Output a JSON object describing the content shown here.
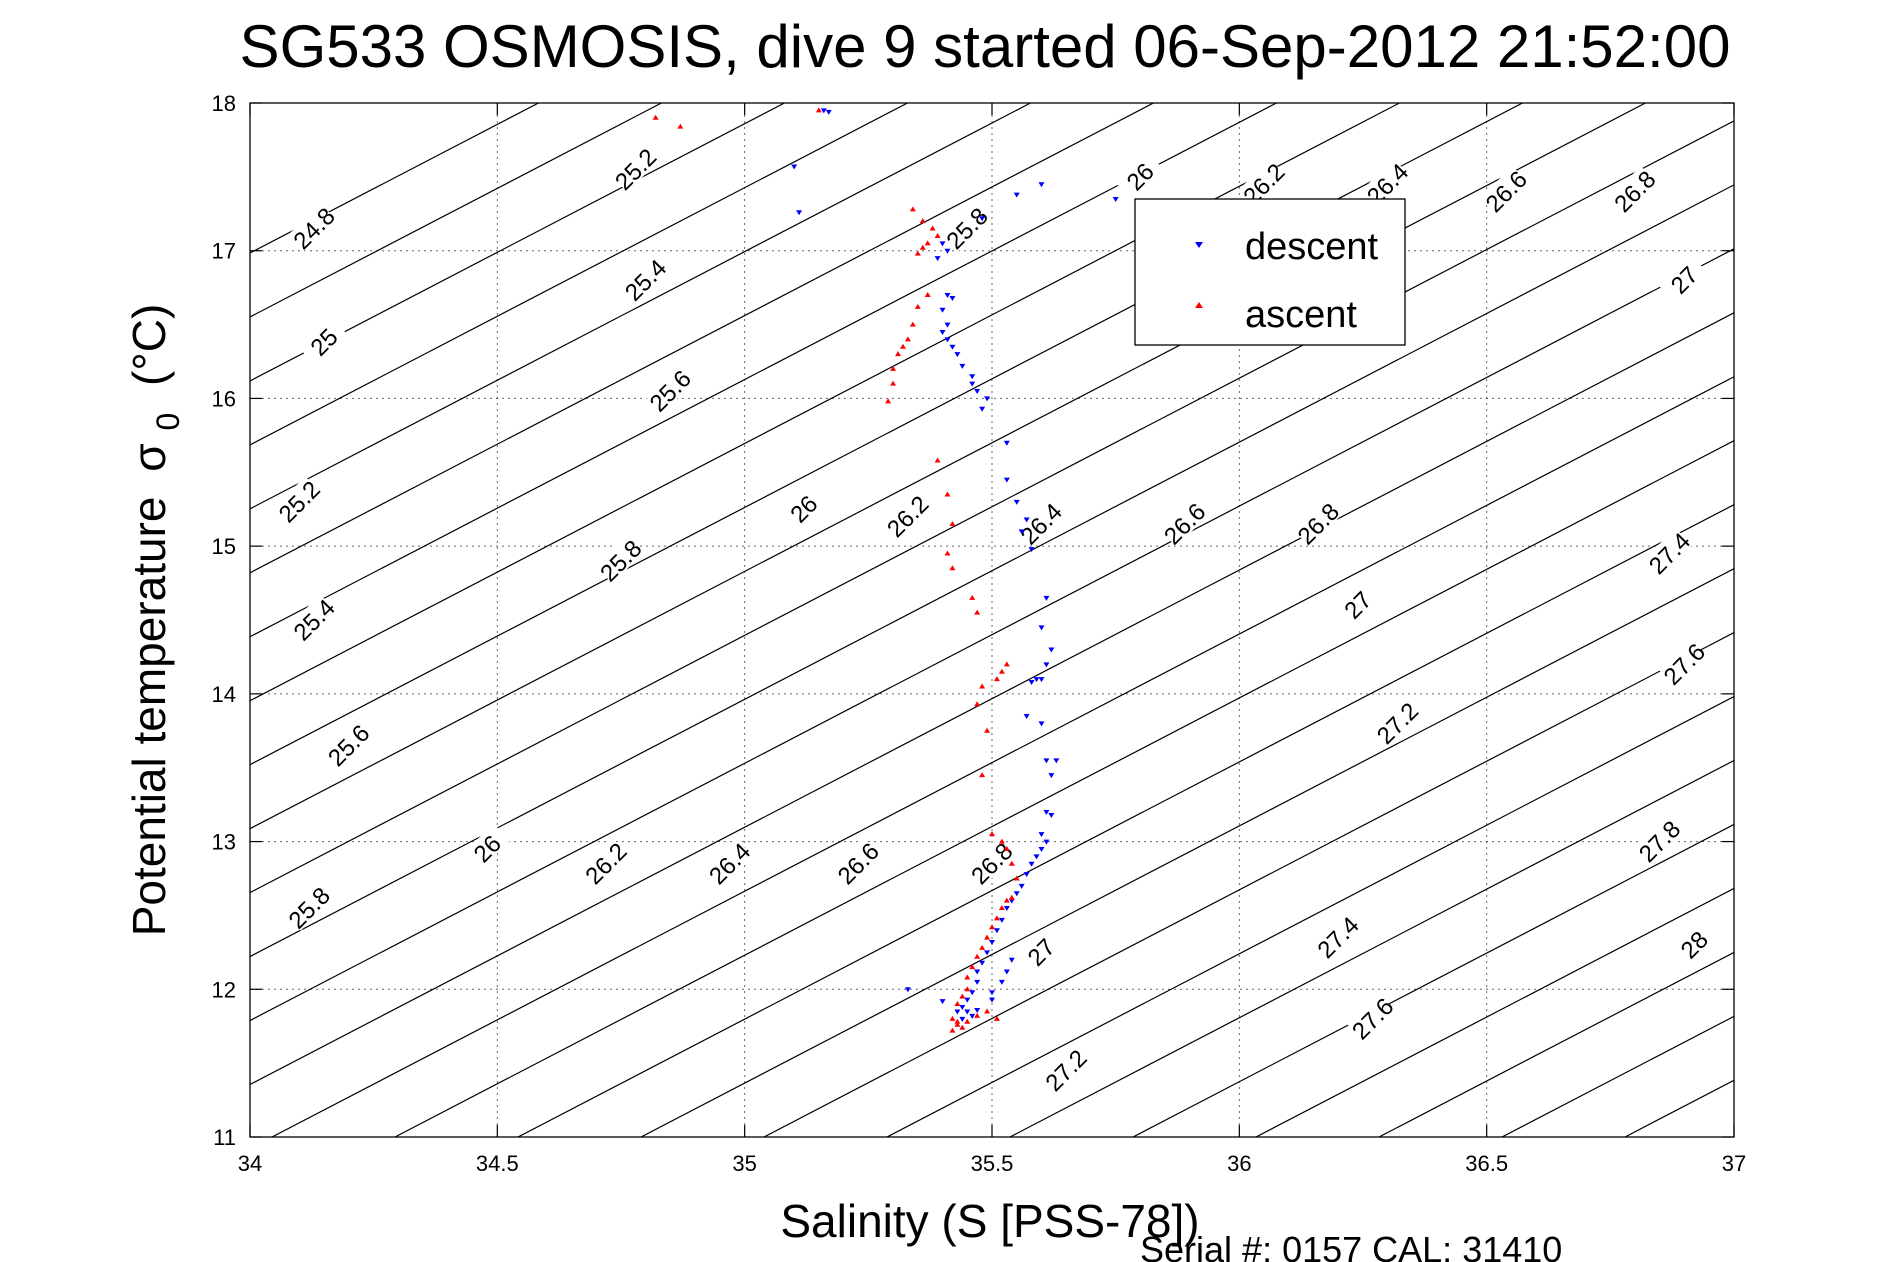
{
  "chart_data": {
    "type": "scatter",
    "title": "SG533 OSMOSIS, dive 9 started 06-Sep-2012 21:52:00",
    "xlabel": "Salinity (S [PSS-78])",
    "ylabel_main": "Potential temperature",
    "ylabel_symbol": "σ",
    "ylabel_subscript": "0",
    "ylabel_unit": "(°C)",
    "xlim": [
      34,
      37
    ],
    "ylim": [
      11,
      18
    ],
    "xticks": [
      "34",
      "34.5",
      "35",
      "35.5",
      "36",
      "36.5",
      "37"
    ],
    "yticks": [
      "11",
      "12",
      "13",
      "14",
      "15",
      "16",
      "17",
      "18"
    ],
    "grid": true,
    "legend_position": "top-right",
    "footer": "Serial #: 0157  CAL: 31410",
    "contours": [
      {
        "label": "24.8",
        "labels": [
          [
            34.13,
            17.15
          ]
        ]
      },
      {
        "label": "25",
        "labels": [
          [
            34.15,
            16.38
          ]
        ]
      },
      {
        "label": "25.2",
        "labels": [
          [
            34.1,
            15.3
          ],
          [
            34.78,
            17.55
          ]
        ]
      },
      {
        "label": "25.4",
        "labels": [
          [
            34.13,
            14.5
          ],
          [
            34.8,
            16.8
          ]
        ]
      },
      {
        "label": "25.6",
        "labels": [
          [
            34.2,
            13.65
          ],
          [
            34.85,
            16.05
          ]
        ]
      },
      {
        "label": "25.8",
        "labels": [
          [
            34.12,
            12.55
          ],
          [
            34.75,
            14.9
          ],
          [
            35.45,
            17.15
          ]
        ]
      },
      {
        "label": "26",
        "labels": [
          [
            34.48,
            12.95
          ],
          [
            35.12,
            15.25
          ],
          [
            35.8,
            17.5
          ]
        ]
      },
      {
        "label": "26.2",
        "labels": [
          [
            34.72,
            12.85
          ],
          [
            35.33,
            15.2
          ],
          [
            36.05,
            17.45
          ]
        ]
      },
      {
        "label": "26.4",
        "labels": [
          [
            34.97,
            12.85
          ],
          [
            35.6,
            15.15
          ],
          [
            36.3,
            17.45
          ]
        ]
      },
      {
        "label": "26.6",
        "labels": [
          [
            35.23,
            12.85
          ],
          [
            35.89,
            15.15
          ],
          [
            36.54,
            17.4
          ]
        ]
      },
      {
        "label": "26.8",
        "labels": [
          [
            35.5,
            12.85
          ],
          [
            36.16,
            15.15
          ],
          [
            36.8,
            17.4
          ]
        ]
      },
      {
        "label": "27",
        "labels": [
          [
            35.6,
            12.25
          ],
          [
            36.24,
            14.6
          ],
          [
            36.9,
            16.8
          ]
        ]
      },
      {
        "label": "27.2",
        "labels": [
          [
            35.65,
            11.45
          ],
          [
            36.32,
            13.8
          ]
        ]
      },
      {
        "label": "27.4",
        "labels": [
          [
            36.2,
            12.35
          ],
          [
            36.87,
            14.95
          ]
        ]
      },
      {
        "label": "27.6",
        "labels": [
          [
            36.27,
            11.8
          ],
          [
            36.9,
            14.2
          ]
        ]
      },
      {
        "label": "27.8",
        "labels": [
          [
            36.85,
            13.0
          ]
        ]
      },
      {
        "label": "28",
        "labels": [
          [
            36.92,
            12.3
          ]
        ]
      }
    ],
    "series": [
      {
        "name": "descent",
        "color": "#0000ff",
        "marker": "triangle-down",
        "points": [
          [
            35.16,
            17.95
          ],
          [
            35.17,
            17.94
          ],
          [
            35.1,
            17.57
          ],
          [
            35.11,
            17.26
          ],
          [
            35.6,
            17.45
          ],
          [
            35.55,
            17.38
          ],
          [
            35.75,
            17.35
          ],
          [
            35.48,
            17.22
          ],
          [
            35.4,
            17.05
          ],
          [
            35.41,
            17.0
          ],
          [
            35.39,
            16.95
          ],
          [
            35.41,
            16.7
          ],
          [
            35.42,
            16.68
          ],
          [
            35.4,
            16.6
          ],
          [
            35.41,
            16.5
          ],
          [
            35.4,
            16.45
          ],
          [
            35.41,
            16.4
          ],
          [
            35.42,
            16.35
          ],
          [
            35.43,
            16.3
          ],
          [
            35.44,
            16.22
          ],
          [
            35.46,
            16.1
          ],
          [
            35.47,
            16.05
          ],
          [
            35.49,
            16.0
          ],
          [
            35.46,
            16.15
          ],
          [
            35.48,
            15.93
          ],
          [
            35.53,
            15.7
          ],
          [
            35.53,
            15.45
          ],
          [
            35.55,
            15.3
          ],
          [
            35.57,
            15.18
          ],
          [
            35.56,
            15.1
          ],
          [
            35.58,
            14.98
          ],
          [
            35.61,
            14.65
          ],
          [
            35.6,
            14.45
          ],
          [
            35.62,
            14.3
          ],
          [
            35.61,
            14.2
          ],
          [
            35.6,
            14.1
          ],
          [
            35.59,
            14.1
          ],
          [
            35.58,
            14.08
          ],
          [
            35.57,
            13.85
          ],
          [
            35.6,
            13.8
          ],
          [
            35.61,
            13.55
          ],
          [
            35.63,
            13.55
          ],
          [
            35.62,
            13.45
          ],
          [
            35.61,
            13.2
          ],
          [
            35.62,
            13.18
          ],
          [
            35.6,
            13.05
          ],
          [
            35.61,
            13.0
          ],
          [
            35.6,
            12.95
          ],
          [
            35.59,
            12.9
          ],
          [
            35.58,
            12.85
          ],
          [
            35.57,
            12.78
          ],
          [
            35.56,
            12.7
          ],
          [
            35.55,
            12.65
          ],
          [
            35.54,
            12.6
          ],
          [
            35.53,
            12.55
          ],
          [
            35.52,
            12.47
          ],
          [
            35.51,
            12.4
          ],
          [
            35.5,
            12.32
          ],
          [
            35.49,
            12.25
          ],
          [
            35.48,
            12.18
          ],
          [
            35.47,
            12.12
          ],
          [
            35.47,
            12.05
          ],
          [
            35.46,
            11.98
          ],
          [
            35.45,
            11.93
          ],
          [
            35.44,
            11.88
          ],
          [
            35.43,
            11.85
          ],
          [
            35.44,
            11.8
          ],
          [
            35.46,
            11.82
          ],
          [
            35.47,
            11.86
          ],
          [
            35.5,
            11.93
          ],
          [
            35.5,
            11.98
          ],
          [
            35.52,
            12.05
          ],
          [
            35.53,
            12.12
          ],
          [
            35.54,
            12.2
          ],
          [
            35.33,
            12.0
          ],
          [
            35.4,
            11.92
          ],
          [
            35.45,
            11.85
          ]
        ]
      },
      {
        "name": "ascent",
        "color": "#ff0000",
        "marker": "triangle-up",
        "points": [
          [
            35.15,
            17.95
          ],
          [
            34.82,
            17.9
          ],
          [
            34.87,
            17.84
          ],
          [
            35.34,
            17.28
          ],
          [
            35.36,
            17.2
          ],
          [
            35.38,
            17.15
          ],
          [
            35.39,
            17.1
          ],
          [
            35.37,
            17.05
          ],
          [
            35.36,
            17.02
          ],
          [
            35.35,
            16.98
          ],
          [
            35.37,
            16.7
          ],
          [
            35.35,
            16.62
          ],
          [
            35.34,
            16.5
          ],
          [
            35.33,
            16.4
          ],
          [
            35.32,
            16.35
          ],
          [
            35.31,
            16.3
          ],
          [
            35.3,
            16.2
          ],
          [
            35.3,
            16.1
          ],
          [
            35.29,
            15.98
          ],
          [
            35.39,
            15.58
          ],
          [
            35.41,
            15.35
          ],
          [
            35.42,
            15.15
          ],
          [
            35.41,
            14.95
          ],
          [
            35.42,
            14.85
          ],
          [
            35.46,
            14.65
          ],
          [
            35.47,
            14.55
          ],
          [
            35.48,
            14.05
          ],
          [
            35.51,
            14.1
          ],
          [
            35.52,
            14.15
          ],
          [
            35.53,
            14.2
          ],
          [
            35.47,
            13.93
          ],
          [
            35.49,
            13.75
          ],
          [
            35.48,
            13.45
          ],
          [
            35.5,
            13.05
          ],
          [
            35.52,
            13.0
          ],
          [
            35.53,
            12.95
          ],
          [
            35.54,
            12.85
          ],
          [
            35.55,
            12.75
          ],
          [
            35.54,
            12.62
          ],
          [
            35.53,
            12.6
          ],
          [
            35.52,
            12.55
          ],
          [
            35.51,
            12.48
          ],
          [
            35.5,
            12.42
          ],
          [
            35.49,
            12.35
          ],
          [
            35.48,
            12.28
          ],
          [
            35.47,
            12.22
          ],
          [
            35.46,
            12.15
          ],
          [
            35.45,
            12.08
          ],
          [
            35.45,
            12.0
          ],
          [
            35.44,
            11.95
          ],
          [
            35.43,
            11.9
          ],
          [
            35.42,
            11.8
          ],
          [
            35.43,
            11.76
          ],
          [
            35.44,
            11.74
          ],
          [
            35.45,
            11.78
          ],
          [
            35.47,
            11.82
          ],
          [
            35.49,
            11.85
          ],
          [
            35.51,
            11.8
          ],
          [
            35.42,
            11.72
          ],
          [
            35.43,
            11.78
          ]
        ]
      }
    ]
  }
}
